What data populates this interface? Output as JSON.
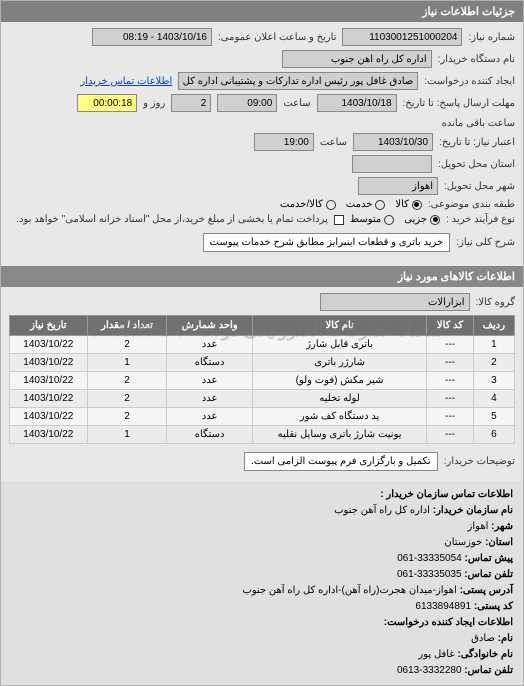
{
  "panel_title": "جزئیات اطلاعات نیاز",
  "fields": {
    "req_no_label": "شماره نیاز:",
    "req_no": "1103001251000204",
    "pub_date_label": "تاریخ و ساعت اعلان عمومی:",
    "pub_date": "1403/10/16 - 08:19",
    "buyer_name_label": "نام دستگاه خریدار:",
    "buyer_name": "اداره کل راه آهن جنوب",
    "requester_label": "ایجاد کننده درخواست:",
    "requester": "صادق غافل پور رئیس اداره تدارکات و پشتیبانی اداره کل راه آهن جنوب",
    "contact_link": "اطلاعات تماس خریدار",
    "deadline_label": "مهلت ارسال پاسخ: تا تاریخ:",
    "deadline_date": "1403/10/18",
    "time_label": "ساعت",
    "deadline_time": "09:00",
    "days_label": "روز و",
    "days": "2",
    "remain_label": "ساعت باقی مانده",
    "remain": "00:00:18",
    "validity_label": "اعتبار نیاز: تا تاریخ:",
    "validity_date": "1403/10/30",
    "validity_time": "19:00",
    "province_label": "استان محل تحویل:",
    "city_label": "شهر محل تحویل:",
    "city": "اهواز",
    "budget_label": "طبقه بندی موضوعی:",
    "budget_radios": {
      "r1": "کالا",
      "r2": "خدمت",
      "r3": "کالا/خدمت"
    },
    "purchase_label": "نوع فرآیند خرید :",
    "purchase_radios": {
      "r1": "جزیی",
      "r2": "متوسط"
    },
    "purchase_note": "پرداخت تمام یا بخشی از مبلغ خرید،از محل \"اسناد خزانه اسلامی\" خواهد بود.",
    "desc_label": "شرح کلی نیاز:",
    "desc": "خرید باتری و قطعات اینبرایز مطابق شرح خدمات پیوست",
    "goods_header": "اطلاعات کالاهای مورد نیاز",
    "group_label": "گروه کالا:",
    "group": "ابزارآلات",
    "buyer_note_label": "توضیحات خریدار:",
    "buyer_note": "تکمیل و بارگزاری فرم پیوست الزامی است."
  },
  "table": {
    "cols": [
      "ردیف",
      "کد کالا",
      "نام کالا",
      "واحد شمارش",
      "تعداد / مقدار",
      "تاریخ نیاز"
    ],
    "rows": [
      [
        "1",
        "---",
        "باتری قابل شارژ",
        "عدد",
        "2",
        "1403/10/22"
      ],
      [
        "2",
        "---",
        "شارژر باتری",
        "دستگاه",
        "1",
        "1403/10/22"
      ],
      [
        "3",
        "---",
        "شیر مکش (فوت ولو)",
        "عدد",
        "2",
        "1403/10/22"
      ],
      [
        "4",
        "---",
        "لوله تخلیه",
        "عدد",
        "2",
        "1403/10/22"
      ],
      [
        "5",
        "---",
        "ید دستگاه کف شور",
        "عدد",
        "2",
        "1403/10/22"
      ],
      [
        "6",
        "---",
        "یونیت شارژ باتری وسایل نقلیه",
        "دستگاه",
        "1",
        "1403/10/22"
      ]
    ]
  },
  "watermark": "سامانه تدارکات الکترونیکی دولت ۸۸۳۴۹۶۱۹-۰۲۰",
  "contact_header": "اطلاعات تماس سازمان خریدار :",
  "contact": {
    "org_label": "نام سازمان خریدار:",
    "org": "اداره کل راه آهن جنوب",
    "city_label": "شهر:",
    "city": "اهواز",
    "province_label": "استان:",
    "province": "خوزستان",
    "phone_label": "پیش تماس:",
    "phone": "33335054-061",
    "fax_label": "تلفن تماس:",
    "fax": "33335035-061",
    "addr_label": "آدرس پستی:",
    "addr": "اهواز-میدان هجرت(راه آهن)-اداره کل راه آهن جنوب",
    "postal_label": "کد پستی:",
    "postal": "6133894891",
    "req_header": "اطلاعات ایجاد کننده درخواست:",
    "name_label": "نام:",
    "name": "صادق",
    "lname_label": "نام خانوادگی:",
    "lname": "غافل پور",
    "tel_label": "تلفن تماس:",
    "tel": "3332280-0613"
  }
}
